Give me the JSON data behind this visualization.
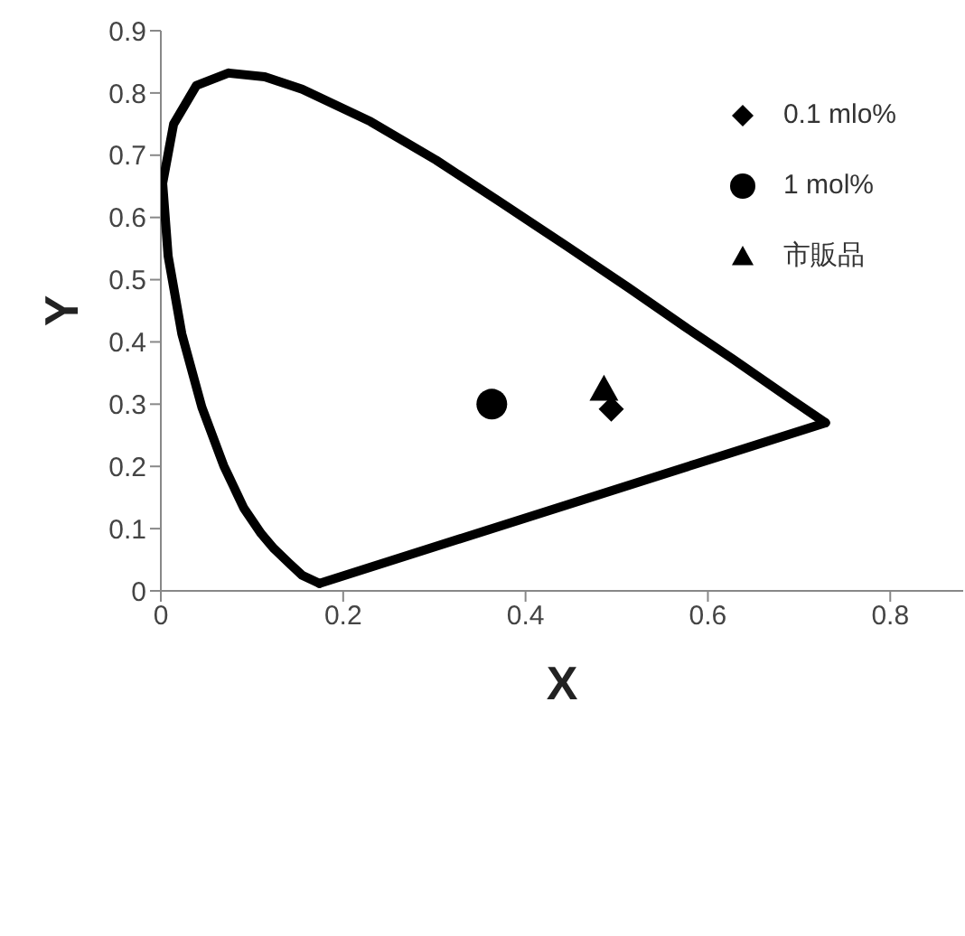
{
  "chart_data": {
    "type": "scatter",
    "xlabel": "X",
    "ylabel": "Y",
    "xlim": [
      0,
      0.88
    ],
    "ylim": [
      0,
      0.9
    ],
    "xticks": [
      0,
      0.2,
      0.4,
      0.6,
      0.8
    ],
    "yticks": [
      0,
      0.1,
      0.2,
      0.3,
      0.4,
      0.5,
      0.6,
      0.7,
      0.8,
      0.9
    ],
    "grid": false,
    "legend": "top right",
    "series": [
      {
        "type": "line",
        "color": "#000000",
        "x": [
          0.174,
          0.155,
          0.141,
          0.124,
          0.11,
          0.091,
          0.069,
          0.045,
          0.023,
          0.008,
          0.002,
          0.014,
          0.039,
          0.074,
          0.114,
          0.155,
          0.23,
          0.302,
          0.373,
          0.444,
          0.513,
          0.575,
          0.627,
          0.691,
          0.729
        ],
        "values": [
          0.012,
          0.025,
          0.044,
          0.068,
          0.092,
          0.133,
          0.201,
          0.295,
          0.413,
          0.538,
          0.655,
          0.75,
          0.812,
          0.832,
          0.826,
          0.806,
          0.754,
          0.692,
          0.624,
          0.555,
          0.487,
          0.424,
          0.373,
          0.308,
          0.27
        ]
      },
      {
        "type": "line",
        "color": "#000000",
        "x": [
          0.174,
          0.729
        ],
        "values": [
          0.012,
          0.27
        ]
      },
      {
        "name": "0.1 mlo%",
        "color": "#000000",
        "marker": "diamond",
        "x": [
          0.494
        ],
        "values": [
          0.292
        ]
      },
      {
        "name": "1 mol%",
        "color": "#000000",
        "marker": "circle",
        "x": [
          0.363
        ],
        "values": [
          0.3
        ]
      },
      {
        "name": "市販品",
        "color": "#000000",
        "marker": "triangle",
        "x": [
          0.486
        ],
        "values": [
          0.324
        ]
      }
    ]
  }
}
